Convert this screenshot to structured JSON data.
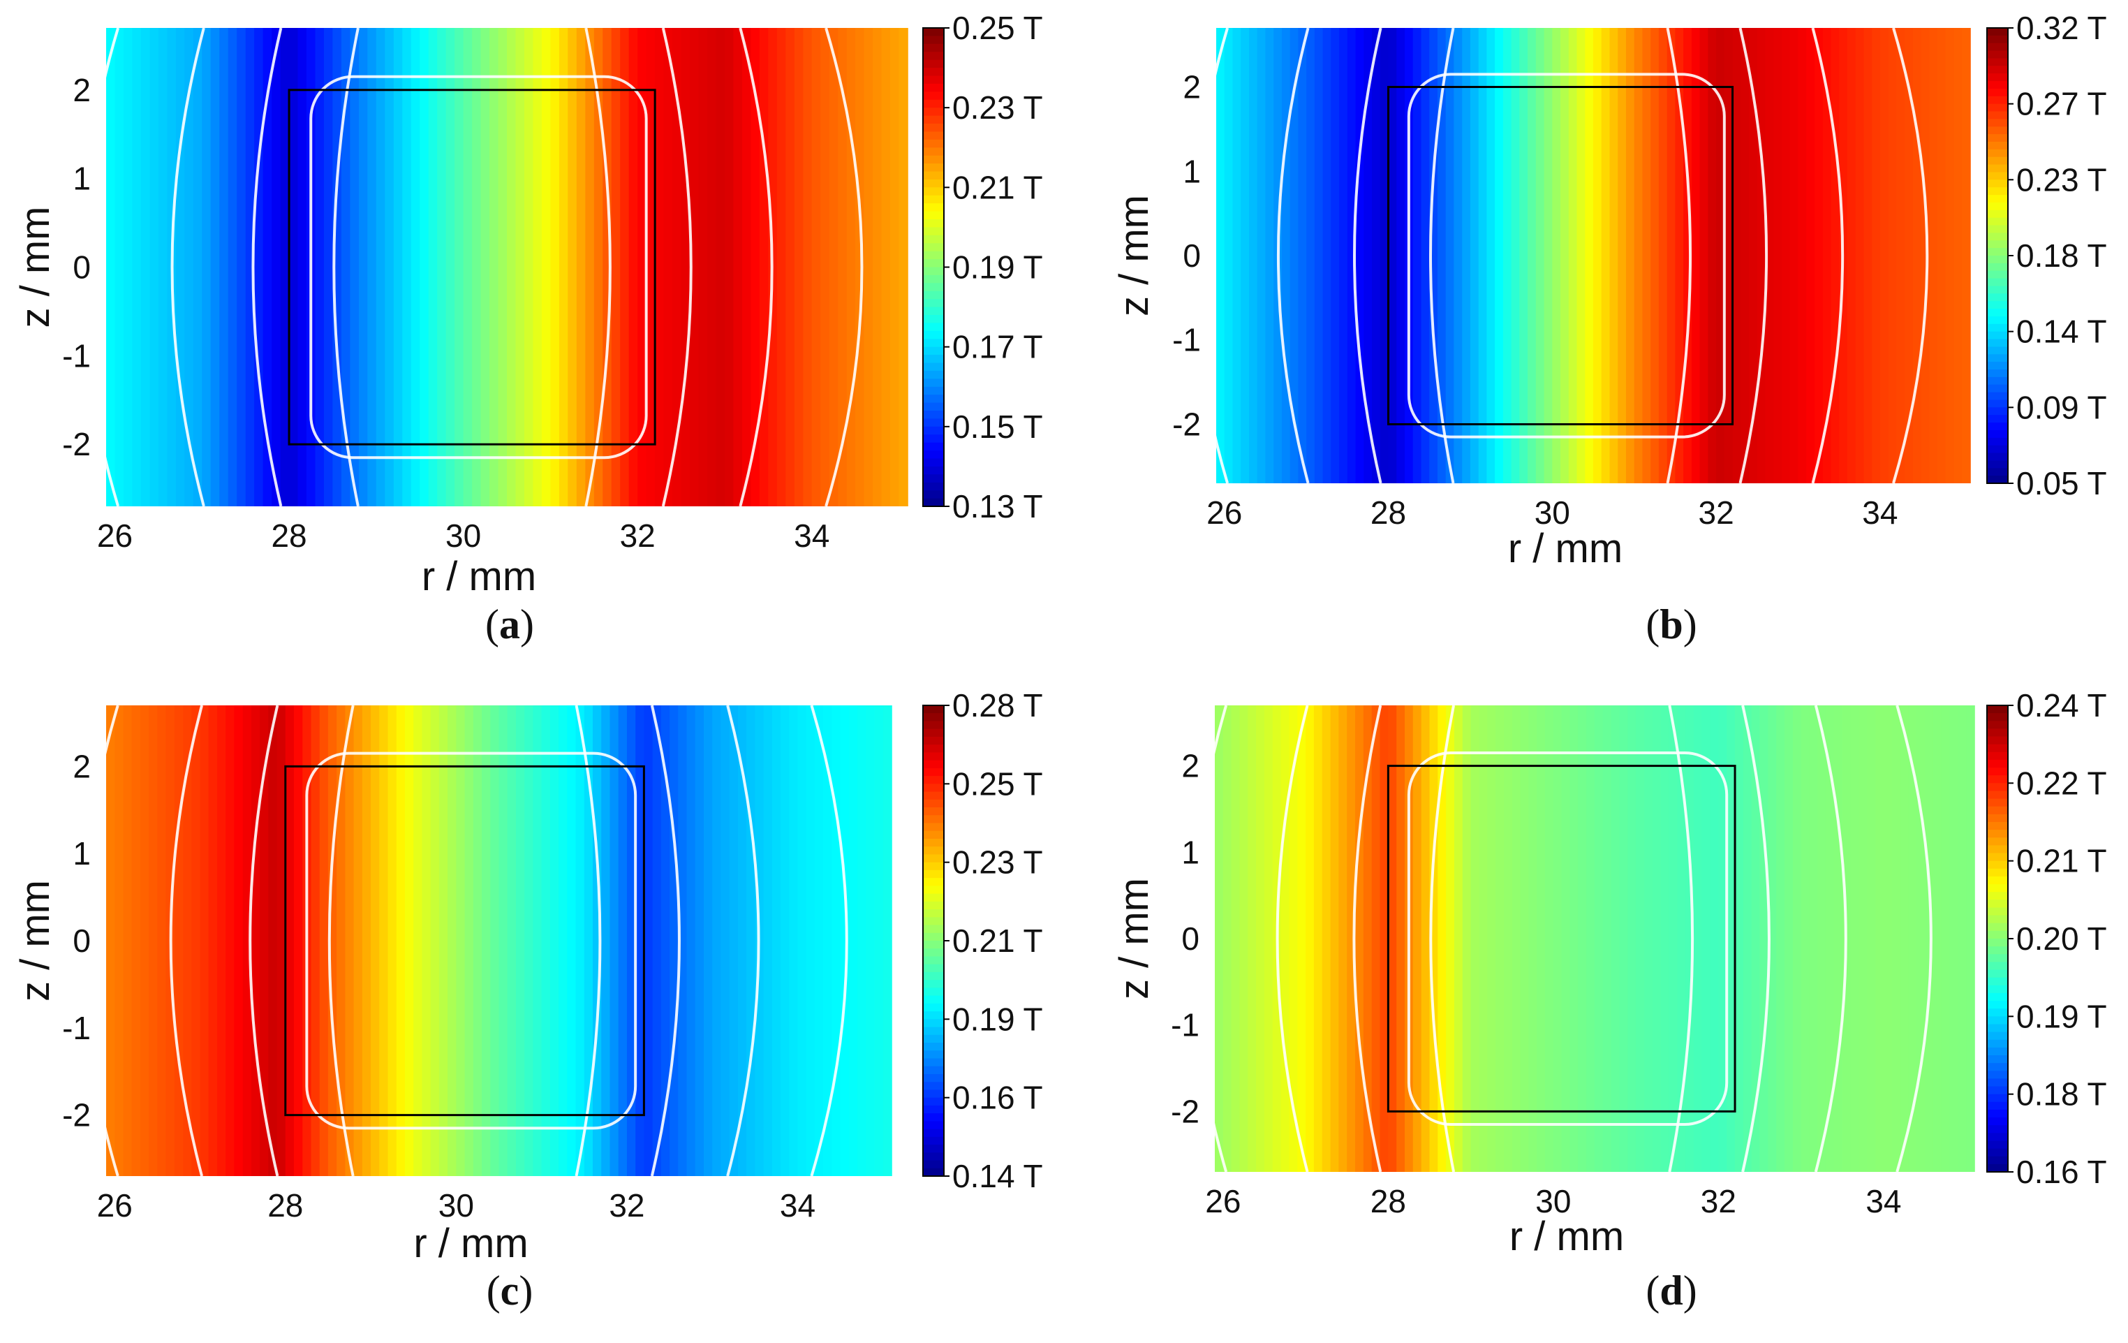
{
  "chart_data": [
    {
      "type": "heatmap",
      "panel": "a",
      "caption_letter": "a",
      "xlabel": "r / mm",
      "ylabel": "z / mm",
      "xlim": [
        25.9,
        35.1
      ],
      "ylim": [
        -2.7,
        2.7
      ],
      "xticks": [
        "26",
        "28",
        "30",
        "32",
        "34"
      ],
      "yticks": [
        "2",
        "1",
        "0",
        "-1",
        "-2"
      ],
      "colorbar": {
        "min": 0.13,
        "max": 0.25,
        "unit": "T",
        "labels": [
          "0.25 T",
          "0.23 T",
          "0.21 T",
          "0.19 T",
          "0.17 T",
          "0.15 T",
          "0.13 T"
        ]
      },
      "magnet_box": {
        "r": [
          28.0,
          32.2
        ],
        "z": [
          -2.0,
          2.0
        ]
      },
      "field_profile": [
        [
          25.9,
          0.175
        ],
        [
          27.0,
          0.165
        ],
        [
          28.0,
          0.14
        ],
        [
          28.8,
          0.16
        ],
        [
          30.0,
          0.185
        ],
        [
          31.0,
          0.205
        ],
        [
          32.0,
          0.235
        ],
        [
          33.0,
          0.24
        ],
        [
          34.0,
          0.225
        ],
        [
          35.1,
          0.215
        ]
      ],
      "contour_lines": 8
    },
    {
      "type": "heatmap",
      "panel": "b",
      "caption_letter": "b",
      "xlabel": "r / mm",
      "ylabel": "z / mm",
      "xlim": [
        25.9,
        35.1
      ],
      "ylim": [
        -2.7,
        2.7
      ],
      "xticks": [
        "26",
        "28",
        "30",
        "32",
        "34"
      ],
      "yticks": [
        "2",
        "1",
        "0",
        "-1",
        "-2"
      ],
      "colorbar": {
        "min": 0.05,
        "max": 0.32,
        "unit": "T",
        "labels": [
          "0.32 T",
          "0.27 T",
          "0.23 T",
          "0.18 T",
          "0.14 T",
          "0.09 T",
          "0.05 T"
        ]
      },
      "magnet_box": {
        "r": [
          28.0,
          32.2
        ],
        "z": [
          -2.0,
          2.0
        ]
      },
      "field_profile": [
        [
          25.9,
          0.15
        ],
        [
          27.0,
          0.11
        ],
        [
          28.0,
          0.07
        ],
        [
          29.0,
          0.13
        ],
        [
          30.0,
          0.19
        ],
        [
          31.0,
          0.25
        ],
        [
          32.0,
          0.3
        ],
        [
          33.0,
          0.29
        ],
        [
          34.0,
          0.27
        ],
        [
          35.1,
          0.26
        ]
      ],
      "contour_lines": 8
    },
    {
      "type": "heatmap",
      "panel": "c",
      "caption_letter": "c",
      "xlabel": "r / mm",
      "ylabel": "z / mm",
      "xlim": [
        25.9,
        35.1
      ],
      "ylim": [
        -2.7,
        2.7
      ],
      "xticks": [
        "26",
        "28",
        "30",
        "32",
        "34"
      ],
      "yticks": [
        "2",
        "1",
        "0",
        "-1",
        "-2"
      ],
      "colorbar": {
        "min": 0.14,
        "max": 0.28,
        "unit": "T",
        "labels": [
          "0.28 T",
          "0.25 T",
          "0.23 T",
          "0.21 T",
          "0.19 T",
          "0.16 T",
          "0.14 T"
        ]
      },
      "magnet_box": {
        "r": [
          28.0,
          32.2
        ],
        "z": [
          -2.0,
          2.0
        ]
      },
      "field_profile": [
        [
          25.9,
          0.245
        ],
        [
          27.0,
          0.255
        ],
        [
          27.9,
          0.27
        ],
        [
          28.5,
          0.25
        ],
        [
          29.5,
          0.225
        ],
        [
          30.5,
          0.205
        ],
        [
          31.5,
          0.19
        ],
        [
          32.2,
          0.165
        ],
        [
          33.0,
          0.18
        ],
        [
          34.0,
          0.19
        ],
        [
          35.1,
          0.195
        ]
      ],
      "contour_lines": 8
    },
    {
      "type": "heatmap",
      "panel": "d",
      "caption_letter": "d",
      "xlabel": "r / mm",
      "ylabel": "z / mm",
      "xlim": [
        25.9,
        35.1
      ],
      "ylim": [
        -2.7,
        2.7
      ],
      "xticks": [
        "26",
        "28",
        "30",
        "32",
        "34"
      ],
      "yticks": [
        "2",
        "1",
        "0",
        "-1",
        "-2"
      ],
      "colorbar": {
        "min": 0.16,
        "max": 0.24,
        "unit": "T",
        "labels": [
          "0.24 T",
          "0.22 T",
          "0.21 T",
          "0.20 T",
          "0.19 T",
          "0.18 T",
          "0.16 T"
        ]
      },
      "magnet_box": {
        "r": [
          28.0,
          32.2
        ],
        "z": [
          -2.0,
          2.0
        ]
      },
      "field_profile": [
        [
          25.9,
          0.202
        ],
        [
          27.0,
          0.21
        ],
        [
          28.0,
          0.225
        ],
        [
          29.0,
          0.203
        ],
        [
          30.0,
          0.2
        ],
        [
          31.0,
          0.197
        ],
        [
          32.0,
          0.195
        ],
        [
          33.0,
          0.2
        ],
        [
          34.0,
          0.201
        ],
        [
          35.1,
          0.2
        ]
      ],
      "contour_lines": 8
    }
  ]
}
